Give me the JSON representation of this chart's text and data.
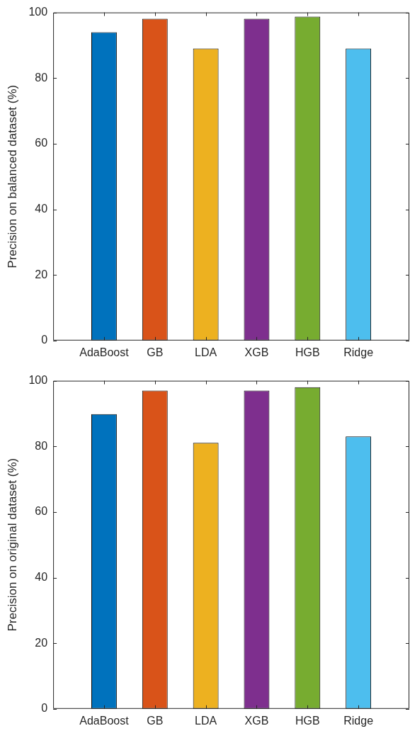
{
  "chart_data": [
    {
      "type": "bar",
      "ylabel": "Precision on balanced dataset (%)",
      "categories": [
        "AdaBoost",
        "GB",
        "LDA",
        "XGB",
        "HGB",
        "Ridge"
      ],
      "values": [
        94,
        98.1,
        89,
        98.1,
        98.7,
        89
      ],
      "colors": [
        "#0072bd",
        "#d95319",
        "#edb120",
        "#7e2f8e",
        "#77ac30",
        "#4dbeee"
      ],
      "ylim": [
        0,
        100
      ],
      "yticks": [
        0,
        20,
        40,
        60,
        80,
        100
      ],
      "grid": false,
      "legend": false
    },
    {
      "type": "bar",
      "ylabel": "Precision on original dataset (%)",
      "categories": [
        "AdaBoost",
        "GB",
        "LDA",
        "XGB",
        "HGB",
        "Ridge"
      ],
      "values": [
        89.8,
        97,
        81.1,
        97,
        98,
        83
      ],
      "colors": [
        "#0072bd",
        "#d95319",
        "#edb120",
        "#7e2f8e",
        "#77ac30",
        "#4dbeee"
      ],
      "ylim": [
        0,
        100
      ],
      "yticks": [
        0,
        20,
        40,
        60,
        80,
        100
      ],
      "grid": false,
      "legend": false
    }
  ]
}
